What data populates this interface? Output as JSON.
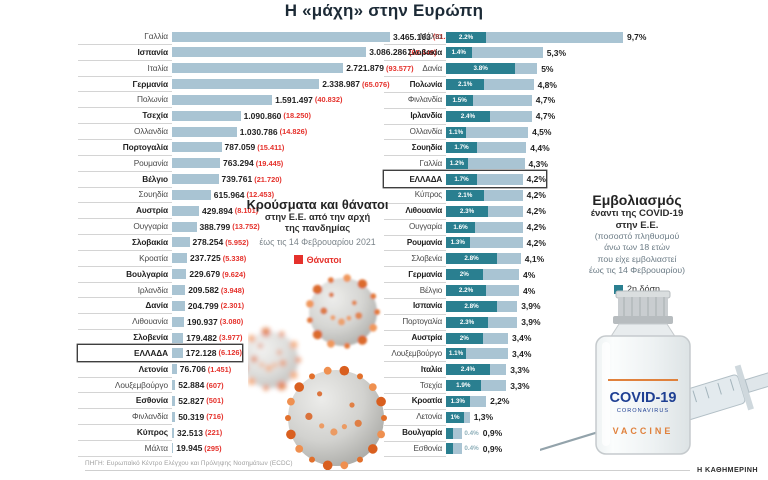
{
  "title": "Η «μάχη» στην Ευρώπη",
  "chart_data": [
    {
      "type": "bar",
      "title": "Κρούσματα και θάνατοι",
      "subtitle_lines": [
        "στην Ε.Ε. από την αρχή",
        "της πανδημίας"
      ],
      "note": "έως τις 14 Φεβρουαρίου 2021",
      "legend": [
        {
          "label": "Θάνατοι",
          "color": "#e5312b"
        }
      ],
      "xlim": [
        0,
        3465163
      ],
      "categories": [
        "Γαλλία",
        "Ισπανία",
        "Ιταλία",
        "Γερμανία",
        "Πολωνία",
        "Τσεχία",
        "Ολλανδία",
        "Πορτογαλία",
        "Ρουμανία",
        "Βέλγιο",
        "Σουηδία",
        "Αυστρία",
        "Ουγγαρία",
        "Σλοβακία",
        "Κροατία",
        "Βουλγαρία",
        "Ιρλανδία",
        "Δανία",
        "Λιθουανία",
        "Σλοβενία",
        "ΕΛΛΑΔΑ",
        "Λετονία",
        "Λουξεμβούργο",
        "Εσθονία",
        "Φινλανδία",
        "Κύπρος",
        "Μάλτα"
      ],
      "values": [
        3465163,
        3086286,
        2721879,
        2338987,
        1591497,
        1090860,
        1030786,
        787059,
        763294,
        739761,
        615964,
        429894,
        388799,
        278254,
        237725,
        229679,
        209582,
        204799,
        190937,
        179482,
        172128,
        76706,
        52884,
        52827,
        50319,
        32513,
        19945
      ],
      "deaths": [
        81814,
        65449,
        93577,
        65076,
        40832,
        18250,
        14826,
        15411,
        19445,
        21720,
        12453,
        8101,
        13752,
        5952,
        5338,
        9624,
        3948,
        2301,
        3080,
        3977,
        6126,
        1451,
        607,
        501,
        716,
        221,
        295
      ],
      "value_labels": [
        "3.465.163",
        "3.086.286",
        "2.721.879",
        "2.338.987",
        "1.591.497",
        "1.090.860",
        "1.030.786",
        "787.059",
        "763.294",
        "739.761",
        "615.964",
        "429.894",
        "388.799",
        "278.254",
        "237.725",
        "229.679",
        "209.582",
        "204.799",
        "190.937",
        "179.482",
        "172.128",
        "76.706",
        "52.884",
        "52.827",
        "50.319",
        "32.513",
        "19.945"
      ],
      "death_labels": [
        "(81.814)",
        "(65.449)",
        "(93.577)",
        "(65.076)",
        "(40.832)",
        "(18.250)",
        "(14.826)",
        "(15.411)",
        "(19.445)",
        "(21.720)",
        "(12.453)",
        "(8.101)",
        "(13.752)",
        "(5.952)",
        "(5.338)",
        "(9.624)",
        "(3.948)",
        "(2.301)",
        "(3.080)",
        "(3.977)",
        "(6.126)",
        "(1.451)",
        "(607)",
        "(501)",
        "(716)",
        "(221)",
        "(295)"
      ],
      "bold_flags": [
        false,
        true,
        false,
        true,
        false,
        true,
        false,
        true,
        false,
        true,
        false,
        true,
        false,
        true,
        false,
        true,
        false,
        true,
        false,
        true,
        true,
        true,
        false,
        true,
        false,
        true,
        false
      ],
      "highlight_index": 20,
      "bar_color": "#a9c4d3"
    },
    {
      "type": "bar",
      "title": "Εμβολιασμός",
      "subtitle_lines": [
        "έναντι της COVID-19",
        "στην Ε.Ε."
      ],
      "note_lines": [
        "(ποσοστό πληθυσμού",
        "άνω των 18 ετών",
        "που είχε εμβολιαστεί",
        "έως τις 14 Φεβρουαρίου)"
      ],
      "legend": [
        {
          "label": "2η δόση",
          "color": "#2a7f90"
        }
      ],
      "xlim": [
        0,
        9.7
      ],
      "categories": [
        "Μάλτα",
        "Σλοβακία",
        "Δανία",
        "Πολωνία",
        "Φινλανδία",
        "Ιρλανδία",
        "Ολλανδία",
        "Σουηδία",
        "Γαλλία",
        "ΕΛΛΑΔΑ",
        "Κύπρος",
        "Λιθουανία",
        "Ουγγαρία",
        "Ρουμανία",
        "Σλοβενία",
        "Γερμανία",
        "Βέλγιο",
        "Ισπανία",
        "Πορτογαλία",
        "Αυστρία",
        "Λουξεμβούργο",
        "Ιταλία",
        "Τσεχία",
        "Κροατία",
        "Λετονία",
        "Βουλγαρία",
        "Εσθονία"
      ],
      "second_dose_pct": [
        2.2,
        1.4,
        3.8,
        2.1,
        1.5,
        2.4,
        1.1,
        1.7,
        1.2,
        1.7,
        2.1,
        2.3,
        1.6,
        1.3,
        2.8,
        2,
        2.2,
        2.8,
        2.3,
        2,
        1.1,
        2.4,
        1.9,
        1.3,
        1,
        0.4,
        0.4
      ],
      "total_pct": [
        9.7,
        5.3,
        5,
        4.8,
        4.7,
        4.7,
        4.5,
        4.4,
        4.3,
        4.2,
        4.2,
        4.2,
        4.2,
        4.2,
        4.1,
        4,
        4,
        3.9,
        3.9,
        3.4,
        3.4,
        3.3,
        3.3,
        2.2,
        1.3,
        0.9,
        0.9
      ],
      "second_dose_labels": [
        "2.2%",
        "1.4%",
        "3.8%",
        "2.1%",
        "1.5%",
        "2.4%",
        "1.1%",
        "1.7%",
        "1.2%",
        "1.7%",
        "2.1%",
        "2.3%",
        "1.6%",
        "1.3%",
        "2.8%",
        "2%",
        "2.2%",
        "2.8%",
        "2.3%",
        "2%",
        "1.1%",
        "2.4%",
        "1.9%",
        "1.3%",
        "1%",
        "0.4%",
        "0.4%"
      ],
      "total_labels": [
        "9,7%",
        "5,3%",
        "5%",
        "4,8%",
        "4,7%",
        "4,7%",
        "4,5%",
        "4,4%",
        "4,3%",
        "4,2%",
        "4,2%",
        "4,2%",
        "4,2%",
        "4,2%",
        "4,1%",
        "4%",
        "4%",
        "3,9%",
        "3,9%",
        "3,4%",
        "3,4%",
        "3,3%",
        "3,3%",
        "2,2%",
        "1,3%",
        "0,9%",
        "0,9%"
      ],
      "bold_flags": [
        false,
        true,
        false,
        true,
        false,
        true,
        false,
        true,
        false,
        true,
        false,
        true,
        false,
        true,
        false,
        true,
        false,
        true,
        false,
        true,
        false,
        true,
        false,
        true,
        false,
        true,
        false
      ],
      "highlight_index": 9,
      "bar_colors": {
        "second_dose": "#2a7f90",
        "total": "#a9c4d3"
      }
    }
  ],
  "vial_text": {
    "brand": "COVID-19",
    "sub": "CORONAVIRUS",
    "type": "VACCINE"
  },
  "source": "ΠΗΓΗ: Ευρωπαϊκό Κέντρο Ελέγχου και Πρόληψης Νοσημάτων (ECDC)",
  "newspaper": "Η ΚΑΘΗΜΕΡΙΝΗ",
  "colors": {
    "bar_light": "#a9c4d3",
    "bar_dark": "#2a7f90",
    "deaths_red": "#e5312b",
    "highlight_box": "#3f3f3f"
  }
}
